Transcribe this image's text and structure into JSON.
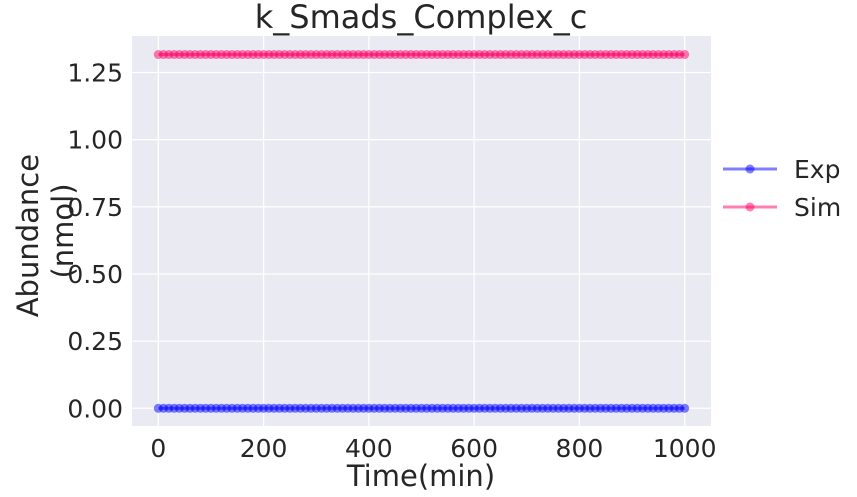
{
  "chart_data": {
    "type": "scatter",
    "title": "k_Smads_Complex_c",
    "xlabel": "Time(min)",
    "ylabel_lines": [
      "Abundance",
      "(nmol)"
    ],
    "xlim": [
      -50,
      1050
    ],
    "ylim": [
      -0.066,
      1.386
    ],
    "xticks": [
      0,
      200,
      400,
      600,
      800,
      1000
    ],
    "yticks": [
      0.0,
      0.25,
      0.5,
      0.75,
      1.0,
      1.25
    ],
    "xtick_labels": [
      "0",
      "200",
      "400",
      "600",
      "800",
      "1000"
    ],
    "ytick_labels": [
      "0.00",
      "0.25",
      "0.50",
      "0.75",
      "1.00",
      "1.25"
    ],
    "x": {
      "start": 0,
      "stop": 1000,
      "count": 101
    },
    "series": [
      {
        "name": "Exp",
        "color": "#0000ff",
        "value": 0.0
      },
      {
        "name": "Sim",
        "color": "#ff0066",
        "value": 1.317
      }
    ],
    "legend_position": "center-right",
    "grid": true,
    "style": {
      "plot_bg": "#eaeaf2",
      "grid_color": "#ffffff"
    }
  }
}
